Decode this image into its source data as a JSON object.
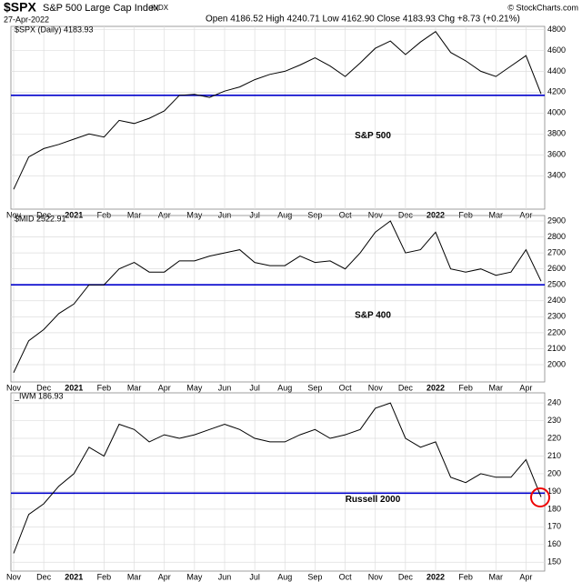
{
  "header": {
    "symbol": "$SPX",
    "name": "S&P 500 Large Cap Index",
    "exchange": "INDX",
    "date": "27-Apr-2022",
    "quote": "Open 4186.52 High 4240.71 Low 4162.90 Close 4183.93 Chg +8.73 (+0.21%)",
    "source": "© StockCharts.com"
  },
  "chart_data": [
    {
      "type": "line",
      "legend": "$SPX (Daily) 4183.93",
      "label": "S&P 500",
      "color": "#000000",
      "grid": true,
      "categories": [
        "Nov",
        null,
        "Dec",
        null,
        "2021",
        null,
        "Feb",
        null,
        "Mar",
        null,
        "Apr",
        null,
        "May",
        null,
        "Jun",
        null,
        "Jul",
        null,
        "Aug",
        null,
        "Sep",
        null,
        "Oct",
        null,
        "Nov",
        null,
        "Dec",
        null,
        "2022",
        null,
        "Feb",
        null,
        "Mar",
        null,
        "Apr",
        null
      ],
      "values": [
        3270,
        3580,
        3660,
        3700,
        3750,
        3800,
        3770,
        3930,
        3900,
        3950,
        4020,
        4170,
        4180,
        4150,
        4210,
        4250,
        4320,
        4370,
        4400,
        4460,
        4530,
        4450,
        4350,
        4480,
        4620,
        4690,
        4560,
        4680,
        4780,
        4580,
        4500,
        4400,
        4350,
        4450,
        4550,
        4183.93
      ],
      "ylim": [
        3080,
        4830
      ],
      "yticks": [
        3400,
        3600,
        3800,
        4000,
        4200,
        4400,
        4600,
        4800
      ],
      "hline": {
        "value": 4170,
        "color": "#0000cc"
      }
    },
    {
      "type": "line",
      "legend": "$MID 2522.91",
      "label": "S&P 400",
      "color": "#000000",
      "grid": true,
      "categories": [
        "Nov",
        null,
        "Dec",
        null,
        "2021",
        null,
        "Feb",
        null,
        "Mar",
        null,
        "Apr",
        null,
        "May",
        null,
        "Jun",
        null,
        "Jul",
        null,
        "Aug",
        null,
        "Sep",
        null,
        "Oct",
        null,
        "Nov",
        null,
        "Dec",
        null,
        "2022",
        null,
        "Feb",
        null,
        "Mar",
        null,
        "Apr",
        null
      ],
      "values": [
        1950,
        2150,
        2220,
        2320,
        2380,
        2500,
        2500,
        2600,
        2640,
        2580,
        2580,
        2650,
        2650,
        2680,
        2700,
        2720,
        2640,
        2620,
        2620,
        2680,
        2640,
        2650,
        2600,
        2700,
        2830,
        2900,
        2700,
        2720,
        2830,
        2600,
        2580,
        2600,
        2560,
        2580,
        2720,
        2522.91
      ],
      "ylim": [
        1892,
        2934
      ],
      "yticks": [
        2000,
        2100,
        2200,
        2300,
        2400,
        2500,
        2600,
        2700,
        2800,
        2900
      ],
      "hline": {
        "value": 2500,
        "color": "#0000cc"
      }
    },
    {
      "type": "line",
      "legend": "_IWM 186.93",
      "label": "Russell 2000",
      "color": "#000000",
      "grid": true,
      "categories": [
        "Nov",
        null,
        "Dec",
        null,
        "2021",
        null,
        "Feb",
        null,
        "Mar",
        null,
        "Apr",
        null,
        "May",
        null,
        "Jun",
        null,
        "Jul",
        null,
        "Aug",
        null,
        "Sep",
        null,
        "Oct",
        null,
        "Nov",
        null,
        "Dec",
        null,
        "2022",
        null,
        "Feb",
        null,
        "Mar",
        null,
        "Apr",
        null
      ],
      "values": [
        155,
        177,
        183,
        193,
        200,
        215,
        210,
        228,
        225,
        218,
        222,
        220,
        222,
        225,
        228,
        225,
        220,
        218,
        218,
        222,
        225,
        220,
        222,
        225,
        237,
        240,
        220,
        215,
        218,
        198,
        195,
        200,
        198,
        198,
        208,
        186.93
      ],
      "ylim": [
        145,
        245.7
      ],
      "yticks": [
        150,
        160,
        170,
        180,
        190,
        200,
        210,
        220,
        230,
        240
      ],
      "hline": {
        "value": 189,
        "color": "#0000cc"
      }
    }
  ]
}
